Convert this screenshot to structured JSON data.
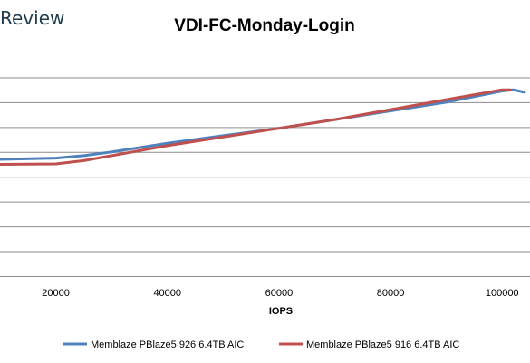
{
  "watermark": "Review",
  "chart_data": {
    "type": "line",
    "title": "VDI-FC-Monday-Login",
    "xlabel": "IOPS",
    "ylabel": "",
    "xlim": [
      10000,
      105000
    ],
    "ylim": [
      0,
      9
    ],
    "x_ticks": [
      20000,
      40000,
      60000,
      80000,
      100000
    ],
    "y_gridlines": [
      0,
      1,
      2,
      3,
      4,
      5,
      6,
      7,
      8
    ],
    "grid": true,
    "legend_position": "bottom",
    "series": [
      {
        "name": "Memblaze PBlaze5 926 6.4TB AIC",
        "color": "#4f81bd",
        "x": [
          10000,
          20000,
          25000,
          30000,
          40000,
          50000,
          60000,
          70000,
          80000,
          90000,
          100000,
          102000,
          104000
        ],
        "y": [
          4.7,
          4.75,
          4.85,
          5.0,
          5.35,
          5.65,
          5.95,
          6.3,
          6.65,
          7.0,
          7.45,
          7.5,
          7.4
        ]
      },
      {
        "name": "Memblaze PBlaze5 916 6.4TB AIC",
        "color": "#c0504d",
        "x": [
          10000,
          20000,
          25000,
          30000,
          40000,
          50000,
          60000,
          70000,
          80000,
          90000,
          100000,
          101500
        ],
        "y": [
          4.5,
          4.52,
          4.65,
          4.85,
          5.25,
          5.6,
          5.95,
          6.3,
          6.7,
          7.1,
          7.5,
          7.5
        ]
      }
    ]
  }
}
